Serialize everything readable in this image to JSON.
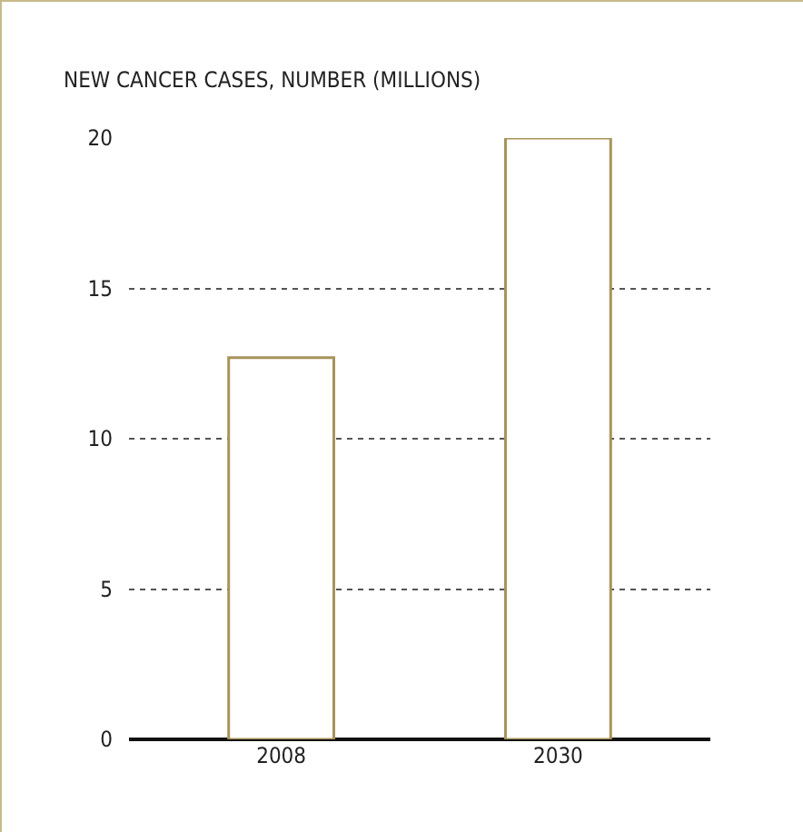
{
  "chart_data": {
    "type": "bar",
    "ylabel": "NEW CANCER CASES, NUMBER (MILLIONS)",
    "categories": [
      "2008",
      "2030"
    ],
    "values": [
      12.7,
      20
    ],
    "color": "#ffffff",
    "ylim": [
      0,
      20
    ],
    "yticks": [
      0,
      5,
      10,
      15,
      20
    ],
    "grid": "y"
  }
}
